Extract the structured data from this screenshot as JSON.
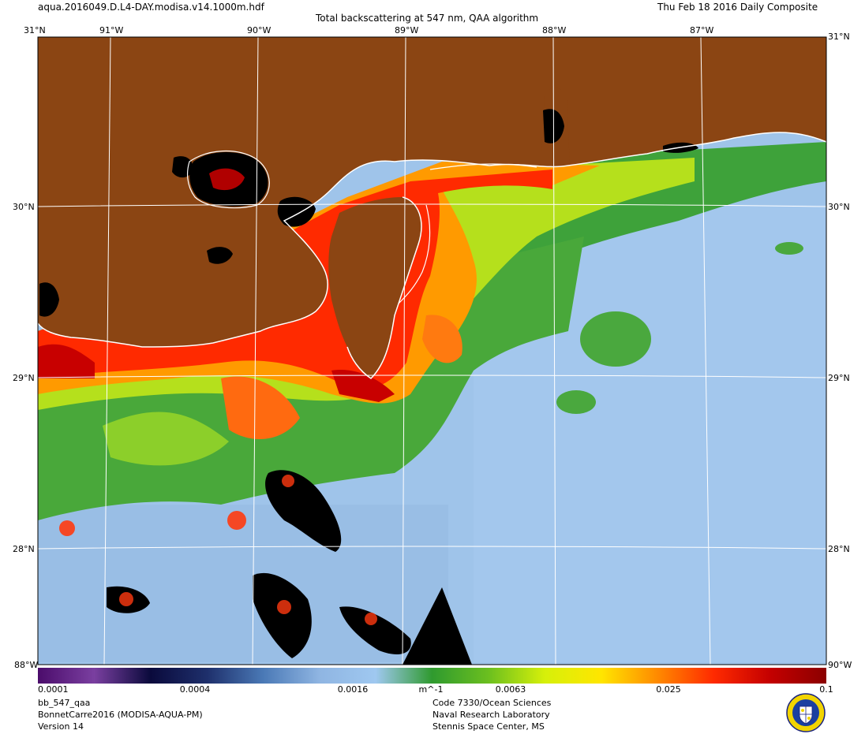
{
  "header": {
    "filename": "aqua.2016049.D.L4-DAY.modisa.v14.1000m.hdf",
    "title": "Total backscattering at 547 nm, QAA algorithm",
    "date": "Thu Feb 18 2016 Daily Composite"
  },
  "map": {
    "lon_labels": [
      "91°W",
      "90°W",
      "89°W",
      "88°W",
      "87°W"
    ],
    "lat_labels": [
      "31°N",
      "30°N",
      "29°N",
      "28°N"
    ],
    "corner_labels": {
      "top_left": "31°N",
      "top_right": "31°N",
      "bottom_left": "88°W",
      "bottom_right": "90°W"
    },
    "colors": {
      "land": "#8b4513",
      "coast": "#ffffff",
      "grid": "#ffffff",
      "nodata": "#000000"
    }
  },
  "colorbar": {
    "ticks": [
      "0.0001",
      "0.0004",
      "0.0016",
      "0.0063",
      "0.025",
      "0.1"
    ],
    "unit": "m^-1",
    "stops": [
      "#4b0c6b",
      "#7a3fa0",
      "#0a0a3c",
      "#1e2f6b",
      "#4a79b6",
      "#8fb5e2",
      "#9fc8f0",
      "#2f9a2f",
      "#6bbf1f",
      "#d6f00a",
      "#ffe600",
      "#ff8a00",
      "#ff2a00",
      "#c40000",
      "#8b0000"
    ]
  },
  "footer": {
    "product": "bb_547_qaa",
    "project": "BonnetCarre2016 (MODISA-AQUA-PM)",
    "version": "Version 14",
    "org1": "Code 7330/Ocean Sciences",
    "org2": "Naval Research Laboratory",
    "org3": "Stennis Space Center, MS"
  }
}
